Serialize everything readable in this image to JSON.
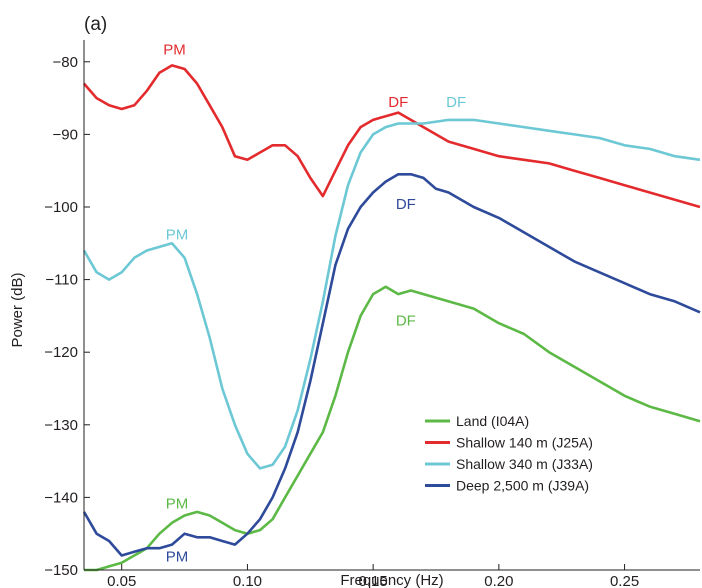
{
  "chart_data": {
    "type": "line",
    "panel_label": "(a)",
    "xlabel": "Frequency (Hz)",
    "ylabel": "Power (dB)",
    "xlim": [
      0.035,
      0.28
    ],
    "ylim": [
      -150,
      -77
    ],
    "xticks": [
      0.05,
      0.1,
      0.15,
      0.2,
      0.25
    ],
    "xtick_labels": [
      "0.05",
      "0.10",
      "0.15",
      "0.20",
      "0.25"
    ],
    "yticks": [
      -150,
      -140,
      -130,
      -120,
      -110,
      -100,
      -90,
      -80
    ],
    "ytick_labels": [
      "−150",
      "−140",
      "−130",
      "−120",
      "−110",
      "−100",
      "−90",
      "−80"
    ],
    "grid": false,
    "legend_position": "bottom-right",
    "series": [
      {
        "name": "Land (I04A)",
        "color": "#5cb946",
        "points": [
          [
            0.035,
            -150
          ],
          [
            0.04,
            -150
          ],
          [
            0.045,
            -149.5
          ],
          [
            0.05,
            -149
          ],
          [
            0.055,
            -148
          ],
          [
            0.06,
            -147
          ],
          [
            0.065,
            -145
          ],
          [
            0.07,
            -143.5
          ],
          [
            0.075,
            -142.5
          ],
          [
            0.08,
            -142
          ],
          [
            0.085,
            -142.5
          ],
          [
            0.09,
            -143.5
          ],
          [
            0.095,
            -144.5
          ],
          [
            0.1,
            -145
          ],
          [
            0.105,
            -144.5
          ],
          [
            0.11,
            -143
          ],
          [
            0.115,
            -140
          ],
          [
            0.12,
            -137
          ],
          [
            0.125,
            -134
          ],
          [
            0.13,
            -131
          ],
          [
            0.135,
            -126
          ],
          [
            0.14,
            -120
          ],
          [
            0.145,
            -115
          ],
          [
            0.15,
            -112
          ],
          [
            0.155,
            -111
          ],
          [
            0.16,
            -112
          ],
          [
            0.165,
            -111.5
          ],
          [
            0.17,
            -112
          ],
          [
            0.175,
            -112.5
          ],
          [
            0.18,
            -113
          ],
          [
            0.19,
            -114
          ],
          [
            0.2,
            -116
          ],
          [
            0.21,
            -117.5
          ],
          [
            0.22,
            -120
          ],
          [
            0.23,
            -122
          ],
          [
            0.24,
            -124
          ],
          [
            0.25,
            -126
          ],
          [
            0.26,
            -127.5
          ],
          [
            0.27,
            -128.5
          ],
          [
            0.28,
            -129.5
          ]
        ]
      },
      {
        "name": "Shallow 140 m (J25A)",
        "color": "#e32b2e",
        "points": [
          [
            0.035,
            -83
          ],
          [
            0.04,
            -85
          ],
          [
            0.045,
            -86
          ],
          [
            0.05,
            -86.5
          ],
          [
            0.055,
            -86
          ],
          [
            0.06,
            -84
          ],
          [
            0.065,
            -81.5
          ],
          [
            0.07,
            -80.5
          ],
          [
            0.075,
            -81
          ],
          [
            0.08,
            -83
          ],
          [
            0.085,
            -86
          ],
          [
            0.09,
            -89
          ],
          [
            0.095,
            -93
          ],
          [
            0.1,
            -93.5
          ],
          [
            0.105,
            -92.5
          ],
          [
            0.11,
            -91.5
          ],
          [
            0.115,
            -91.5
          ],
          [
            0.12,
            -93
          ],
          [
            0.125,
            -96
          ],
          [
            0.13,
            -98.5
          ],
          [
            0.135,
            -95
          ],
          [
            0.14,
            -91.5
          ],
          [
            0.145,
            -89
          ],
          [
            0.15,
            -88
          ],
          [
            0.155,
            -87.5
          ],
          [
            0.16,
            -87
          ],
          [
            0.165,
            -88
          ],
          [
            0.17,
            -89
          ],
          [
            0.175,
            -90
          ],
          [
            0.18,
            -91
          ],
          [
            0.19,
            -92
          ],
          [
            0.2,
            -93
          ],
          [
            0.21,
            -93.5
          ],
          [
            0.22,
            -94
          ],
          [
            0.23,
            -95
          ],
          [
            0.24,
            -96
          ],
          [
            0.25,
            -97
          ],
          [
            0.26,
            -98
          ],
          [
            0.27,
            -99
          ],
          [
            0.28,
            -100
          ]
        ]
      },
      {
        "name": "Shallow 340 m (J33A)",
        "color": "#6cc8d4",
        "points": [
          [
            0.035,
            -106
          ],
          [
            0.04,
            -109
          ],
          [
            0.045,
            -110
          ],
          [
            0.05,
            -109
          ],
          [
            0.055,
            -107
          ],
          [
            0.06,
            -106
          ],
          [
            0.065,
            -105.5
          ],
          [
            0.07,
            -105
          ],
          [
            0.075,
            -107
          ],
          [
            0.08,
            -112
          ],
          [
            0.085,
            -118
          ],
          [
            0.09,
            -125
          ],
          [
            0.095,
            -130
          ],
          [
            0.1,
            -134
          ],
          [
            0.105,
            -136
          ],
          [
            0.11,
            -135.5
          ],
          [
            0.115,
            -133
          ],
          [
            0.12,
            -128
          ],
          [
            0.125,
            -121
          ],
          [
            0.13,
            -113
          ],
          [
            0.135,
            -104
          ],
          [
            0.14,
            -97
          ],
          [
            0.145,
            -92.5
          ],
          [
            0.15,
            -90
          ],
          [
            0.155,
            -89
          ],
          [
            0.16,
            -88.5
          ],
          [
            0.165,
            -88.5
          ],
          [
            0.17,
            -88.5
          ],
          [
            0.18,
            -88
          ],
          [
            0.19,
            -88
          ],
          [
            0.2,
            -88.5
          ],
          [
            0.21,
            -89
          ],
          [
            0.22,
            -89.5
          ],
          [
            0.23,
            -90
          ],
          [
            0.24,
            -90.5
          ],
          [
            0.25,
            -91.5
          ],
          [
            0.26,
            -92
          ],
          [
            0.27,
            -93
          ],
          [
            0.28,
            -93.5
          ]
        ]
      },
      {
        "name": "Deep 2,500 m (J39A)",
        "color": "#2e4a9a",
        "points": [
          [
            0.035,
            -142
          ],
          [
            0.04,
            -145
          ],
          [
            0.045,
            -146
          ],
          [
            0.05,
            -148
          ],
          [
            0.055,
            -147.5
          ],
          [
            0.06,
            -147
          ],
          [
            0.065,
            -147
          ],
          [
            0.07,
            -146.5
          ],
          [
            0.075,
            -145
          ],
          [
            0.08,
            -145.5
          ],
          [
            0.085,
            -145.5
          ],
          [
            0.09,
            -146
          ],
          [
            0.095,
            -146.5
          ],
          [
            0.1,
            -145
          ],
          [
            0.105,
            -143
          ],
          [
            0.11,
            -140
          ],
          [
            0.115,
            -136
          ],
          [
            0.12,
            -131
          ],
          [
            0.125,
            -124
          ],
          [
            0.13,
            -116
          ],
          [
            0.135,
            -108
          ],
          [
            0.14,
            -103
          ],
          [
            0.145,
            -100
          ],
          [
            0.15,
            -98
          ],
          [
            0.155,
            -96.5
          ],
          [
            0.16,
            -95.5
          ],
          [
            0.165,
            -95.5
          ],
          [
            0.17,
            -96
          ],
          [
            0.175,
            -97.5
          ],
          [
            0.18,
            -98
          ],
          [
            0.19,
            -100
          ],
          [
            0.2,
            -101.5
          ],
          [
            0.21,
            -103.5
          ],
          [
            0.22,
            -105.5
          ],
          [
            0.23,
            -107.5
          ],
          [
            0.24,
            -109
          ],
          [
            0.25,
            -110.5
          ],
          [
            0.26,
            -112
          ],
          [
            0.27,
            -113
          ],
          [
            0.28,
            -114.5
          ]
        ]
      }
    ],
    "annotations": [
      {
        "text": "PM",
        "series": 1,
        "x": 0.071,
        "y": -79
      },
      {
        "text": "DF",
        "series": 1,
        "x": 0.16,
        "y": -86.2
      },
      {
        "text": "DF",
        "series": 2,
        "x": 0.183,
        "y": -86.2
      },
      {
        "text": "PM",
        "series": 2,
        "x": 0.072,
        "y": -104.5
      },
      {
        "text": "DF",
        "series": 3,
        "x": 0.163,
        "y": -100.3
      },
      {
        "text": "DF",
        "series": 0,
        "x": 0.163,
        "y": -116.3
      },
      {
        "text": "PM",
        "series": 0,
        "x": 0.072,
        "y": -141.5
      },
      {
        "text": "PM",
        "series": 3,
        "x": 0.072,
        "y": -148.8
      }
    ]
  }
}
